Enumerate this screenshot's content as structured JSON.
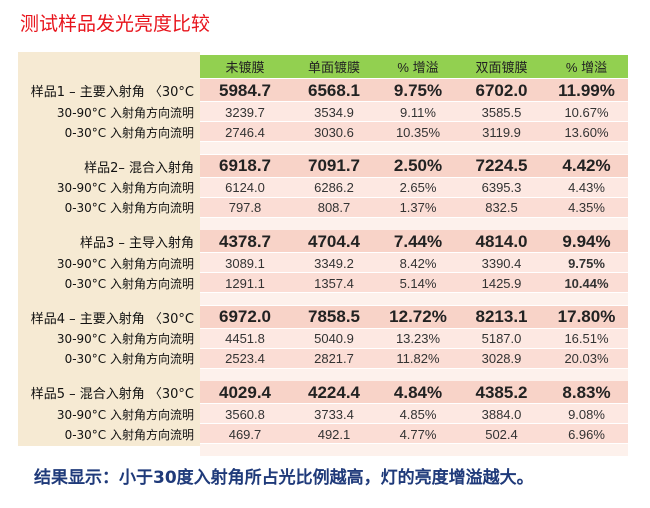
{
  "title": "测试样品发光亮度比较",
  "table": {
    "header": [
      "未镀膜",
      "单面镀膜",
      "% 增溢",
      "双面镀膜",
      "% 增溢"
    ],
    "groups": [
      {
        "rows": [
          {
            "label": "样品1 – 主要入射角 〈30°C",
            "cells": [
              "5984.7",
              "6568.1",
              "9.75%",
              "6702.0",
              "11.99%"
            ]
          },
          {
            "label": "30-90°C 入射角方向流明",
            "cells": [
              "3239.7",
              "3534.9",
              "9.11%",
              "3585.5",
              "10.67%"
            ]
          },
          {
            "label": "0-30°C 入射角方向流明",
            "cells": [
              "2746.4",
              "3030.6",
              "10.35%",
              "3119.9",
              "13.60%"
            ]
          }
        ]
      },
      {
        "rows": [
          {
            "label": "样品2– 混合入射角",
            "cells": [
              "6918.7",
              "7091.7",
              "2.50%",
              "7224.5",
              "4.42%"
            ]
          },
          {
            "label": "30-90°C 入射角方向流明",
            "cells": [
              "6124.0",
              "6286.2",
              "2.65%",
              "6395.3",
              "4.43%"
            ]
          },
          {
            "label": "0-30°C 入射角方向流明",
            "cells": [
              "797.8",
              "808.7",
              "1.37%",
              "832.5",
              "4.35%"
            ]
          }
        ]
      },
      {
        "rows": [
          {
            "label": "样品3 – 主导入射角",
            "cells": [
              "4378.7",
              "4704.4",
              "7.44%",
              "4814.0",
              "9.94%"
            ]
          },
          {
            "label": "30-90°C 入射角方向流明",
            "cells": [
              "3089.1",
              "3349.2",
              "8.42%",
              "3390.4",
              "9.75%"
            ]
          },
          {
            "label": "0-30°C 入射角方向流明",
            "cells": [
              "1291.1",
              "1357.4",
              "5.14%",
              "1425.9",
              "10.44%"
            ]
          }
        ]
      },
      {
        "rows": [
          {
            "label": "样品4 – 主要入射角 〈30°C",
            "cells": [
              "6972.0",
              "7858.5",
              "12.72%",
              "8213.1",
              "17.80%"
            ]
          },
          {
            "label": "30-90°C 入射角方向流明",
            "cells": [
              "4451.8",
              "5040.9",
              "13.23%",
              "5187.0",
              "16.51%"
            ]
          },
          {
            "label": "0-30°C 入射角方向流明",
            "cells": [
              "2523.4",
              "2821.7",
              "11.82%",
              "3028.9",
              "20.03%"
            ]
          }
        ]
      },
      {
        "rows": [
          {
            "label": "样品5 – 混合入射角 〈30°C",
            "cells": [
              "4029.4",
              "4224.4",
              "4.84%",
              "4385.2",
              "8.83%"
            ]
          },
          {
            "label": "30-90°C 入射角方向流明",
            "cells": [
              "3560.8",
              "3733.4",
              "4.85%",
              "3884.0",
              "9.08%"
            ]
          },
          {
            "label": "0-30°C 入射角方向流明",
            "cells": [
              "469.7",
              "492.1",
              "4.77%",
              "502.4",
              "6.96%"
            ]
          }
        ]
      }
    ]
  },
  "conclusion": "结果显示：小于30度入射角所占光比例越高，灯的亮度增溢越大。"
}
